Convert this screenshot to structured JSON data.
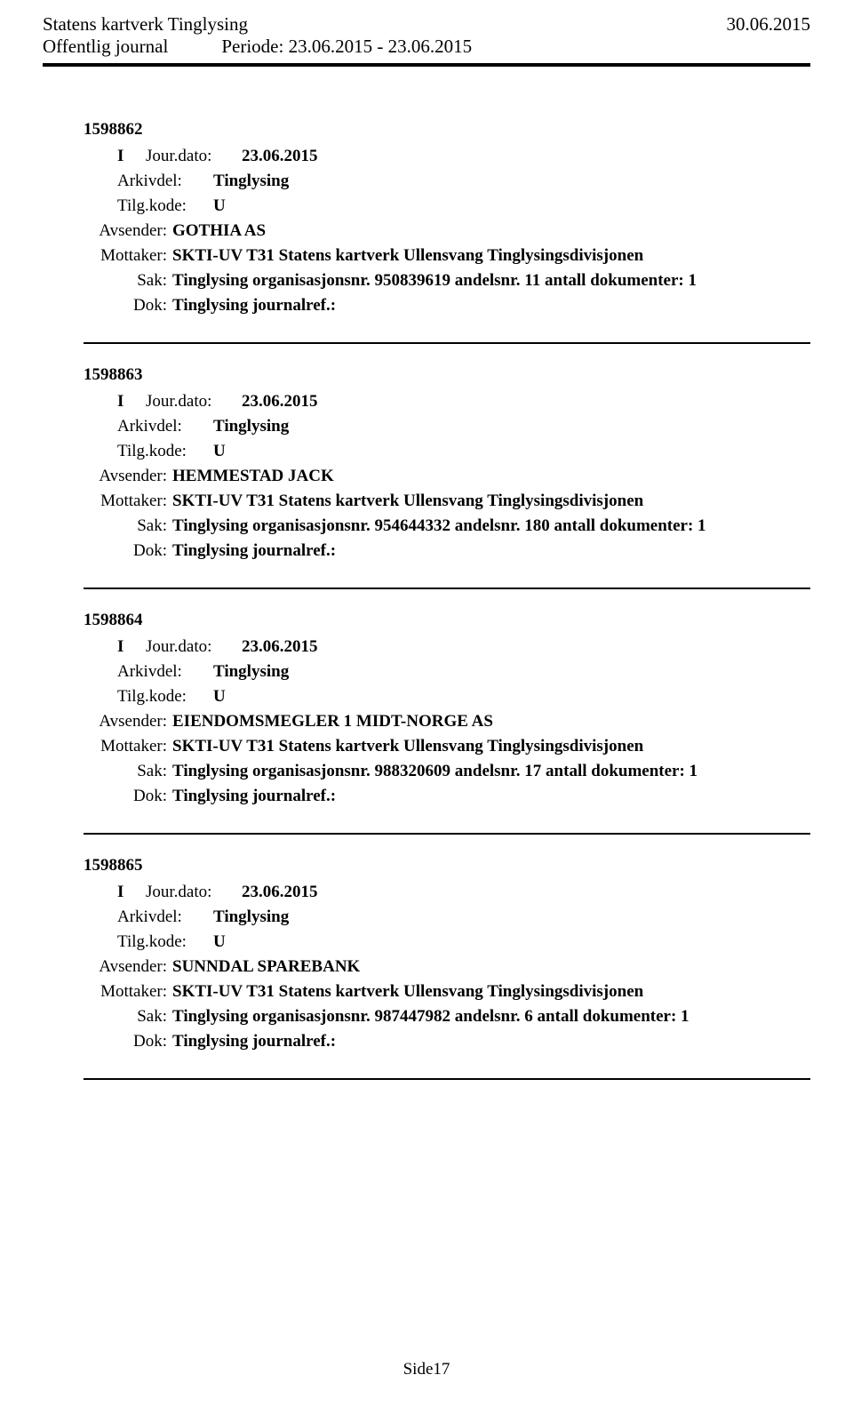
{
  "header": {
    "org": "Statens kartverk Tinglysing",
    "date": "30.06.2015",
    "journal": "Offentlig journal",
    "period": "Periode: 23.06.2015 - 23.06.2015"
  },
  "entries": [
    {
      "id": "1598862",
      "type": "I",
      "jourdato_label": "Jour.dato:",
      "jourdato": "23.06.2015",
      "arkivdel_label": "Arkivdel:",
      "arkivdel": "Tinglysing",
      "tilgkode_label": "Tilg.kode:",
      "tilgkode": "U",
      "avsender_label": "Avsender:",
      "avsender": "GOTHIA AS",
      "mottaker_label": "Mottaker:",
      "mottaker": "SKTI-UV T31 Statens kartverk Ullensvang Tinglysingsdivisjonen",
      "sak_label": "Sak:",
      "sak": "Tinglysing organisasjonsnr. 950839619 andelsnr. 11 antall dokumenter: 1",
      "dok_label": "Dok:",
      "dok": "Tinglysing journalref.:"
    },
    {
      "id": "1598863",
      "type": "I",
      "jourdato_label": "Jour.dato:",
      "jourdato": "23.06.2015",
      "arkivdel_label": "Arkivdel:",
      "arkivdel": "Tinglysing",
      "tilgkode_label": "Tilg.kode:",
      "tilgkode": "U",
      "avsender_label": "Avsender:",
      "avsender": "HEMMESTAD JACK",
      "mottaker_label": "Mottaker:",
      "mottaker": "SKTI-UV T31 Statens kartverk Ullensvang Tinglysingsdivisjonen",
      "sak_label": "Sak:",
      "sak": "Tinglysing organisasjonsnr. 954644332 andelsnr. 180 antall dokumenter: 1",
      "dok_label": "Dok:",
      "dok": "Tinglysing journalref.:"
    },
    {
      "id": "1598864",
      "type": "I",
      "jourdato_label": "Jour.dato:",
      "jourdato": "23.06.2015",
      "arkivdel_label": "Arkivdel:",
      "arkivdel": "Tinglysing",
      "tilgkode_label": "Tilg.kode:",
      "tilgkode": "U",
      "avsender_label": "Avsender:",
      "avsender": "EIENDOMSMEGLER 1 MIDT-NORGE AS",
      "mottaker_label": "Mottaker:",
      "mottaker": "SKTI-UV T31 Statens kartverk Ullensvang Tinglysingsdivisjonen",
      "sak_label": "Sak:",
      "sak": "Tinglysing organisasjonsnr. 988320609 andelsnr. 17 antall dokumenter: 1",
      "dok_label": "Dok:",
      "dok": "Tinglysing journalref.:"
    },
    {
      "id": "1598865",
      "type": "I",
      "jourdato_label": "Jour.dato:",
      "jourdato": "23.06.2015",
      "arkivdel_label": "Arkivdel:",
      "arkivdel": "Tinglysing",
      "tilgkode_label": "Tilg.kode:",
      "tilgkode": "U",
      "avsender_label": "Avsender:",
      "avsender": "SUNNDAL SPAREBANK",
      "mottaker_label": "Mottaker:",
      "mottaker": "SKTI-UV T31 Statens kartverk Ullensvang Tinglysingsdivisjonen",
      "sak_label": "Sak:",
      "sak": "Tinglysing organisasjonsnr. 987447982 andelsnr. 6 antall dokumenter: 1",
      "dok_label": "Dok:",
      "dok": "Tinglysing journalref.:"
    }
  ],
  "footer": {
    "page": "Side17"
  }
}
